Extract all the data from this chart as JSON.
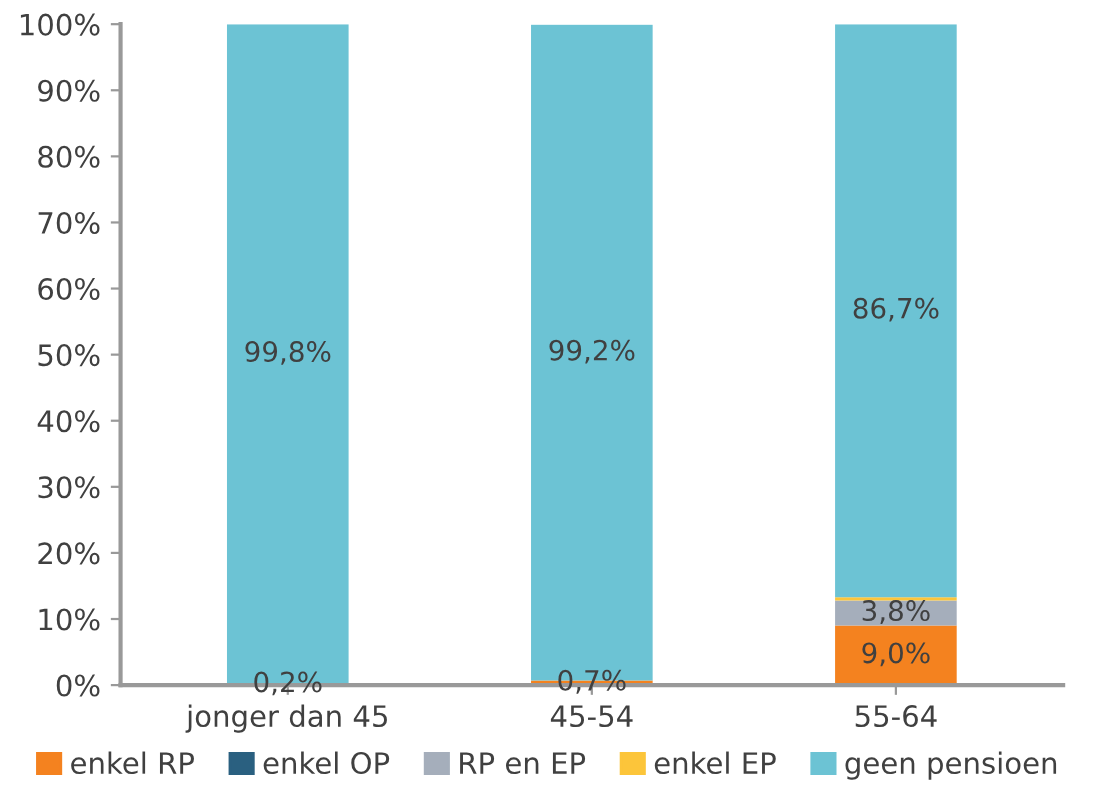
{
  "chart_data": {
    "type": "bar",
    "stacked": true,
    "categories": [
      "jonger dan 45",
      "45-54",
      "55-64"
    ],
    "series": [
      {
        "name": "enkel RP",
        "color": "#f4821f",
        "values": [
          0.2,
          0.7,
          9.0
        ],
        "value_labels": [
          "0,2%",
          "0,7%",
          "9,0%"
        ]
      },
      {
        "name": "enkel OP",
        "color": "#2a6080",
        "values": [
          0,
          0,
          0
        ],
        "value_labels": [
          null,
          null,
          null
        ]
      },
      {
        "name": "RP en EP",
        "color": "#a5aebb",
        "values": [
          0,
          0,
          3.8
        ],
        "value_labels": [
          null,
          null,
          "3,8%"
        ]
      },
      {
        "name": "enkel EP",
        "color": "#fcc53a",
        "values": [
          0,
          0,
          0.5
        ],
        "value_labels": [
          null,
          null,
          null
        ]
      },
      {
        "name": "geen pensioen",
        "color": "#6cc3d4",
        "values": [
          99.8,
          99.2,
          86.7
        ],
        "value_labels": [
          "99,8%",
          "99,2%",
          "86,7%"
        ]
      }
    ],
    "ylim": [
      0,
      100
    ],
    "yticks": [
      {
        "value": 0,
        "label": "0%"
      },
      {
        "value": 10,
        "label": "10%"
      },
      {
        "value": 20,
        "label": "20%"
      },
      {
        "value": 30,
        "label": "30%"
      },
      {
        "value": 40,
        "label": "40%"
      },
      {
        "value": 50,
        "label": "50%"
      },
      {
        "value": 60,
        "label": "60%"
      },
      {
        "value": 70,
        "label": "70%"
      },
      {
        "value": 80,
        "label": "80%"
      },
      {
        "value": 90,
        "label": "90%"
      },
      {
        "value": 100,
        "label": "100%"
      }
    ],
    "grid": false,
    "legend": "bottom"
  }
}
